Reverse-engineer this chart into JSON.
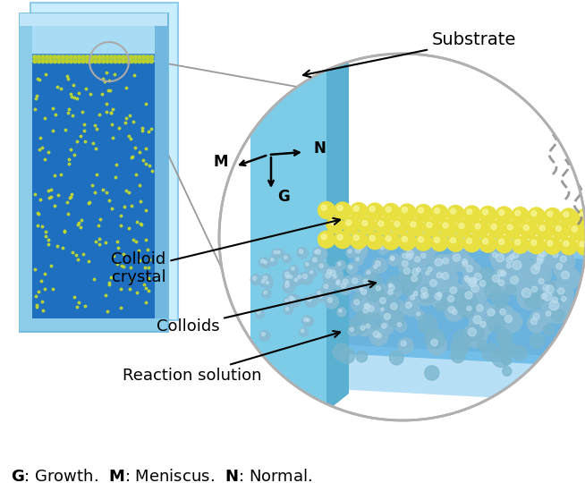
{
  "bg_color": "#ffffff",
  "vial_outer_color": "#b8e8f8",
  "vial_inner_color": "#2472c8",
  "vial_wall_color": "#88ccee",
  "colloid_dot_color": "#c8e040",
  "colloid_crystal_vial_color": "#c8d840",
  "substrate_face_color": "#8dd4f0",
  "substrate_top_color": "#b8ecff",
  "substrate_side_color": "#6ab8d8",
  "solution_main_color": "#5aabdc",
  "solution_light_color": "#8dd4f8",
  "solution_bottom_color": "#3a8fc8",
  "crystal_sphere_color": "#e8e040",
  "crystal_sphere_hi": "#f8f8a0",
  "colloid_sphere_color": "#88bbd4",
  "colloid_sphere_hi": "#c0e0f0",
  "circle_edge_color": "#b0b0b0",
  "evap_color": "#808080",
  "arrow_color": "#000000",
  "text_color": "#000000",
  "label_substrate": "Substrate",
  "label_colloid_crystal": "Colloid\ncrystal",
  "label_colloids": "Colloids",
  "label_reaction_solution": "Reaction solution",
  "label_M": "M",
  "label_N": "N",
  "label_G": "G",
  "figsize": [
    6.54,
    5.4
  ],
  "dpi": 100
}
